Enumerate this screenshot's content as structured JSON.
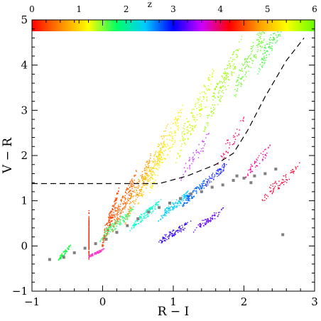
{
  "chart_data": {
    "type": "scatter",
    "xlabel": "R − I",
    "ylabel": "V − R",
    "xlim": [
      -1,
      3
    ],
    "ylim": [
      -1,
      5
    ],
    "x_ticks": [
      -1,
      0,
      1,
      2,
      3
    ],
    "y_ticks": [
      -1,
      0,
      1,
      2,
      3,
      4,
      5
    ],
    "colorbar": {
      "label": "z",
      "min": 0,
      "max": 6,
      "ticks": [
        0,
        1,
        2,
        3,
        4,
        5,
        6
      ],
      "colors": [
        "#ff0000",
        "#ff8800",
        "#ffff00",
        "#00ff66",
        "#00ccff",
        "#0000ff",
        "#cc00ff",
        "#ff0000",
        "#ff9900",
        "#ffff00",
        "#66ff00"
      ]
    },
    "series": [
      {
        "color": "#808080",
        "points": [
          [
            -0.75,
            -0.3
          ],
          [
            -0.55,
            -0.25
          ],
          [
            -0.4,
            -0.15
          ],
          [
            -0.25,
            -0.05
          ],
          [
            -0.1,
            0.05
          ],
          [
            0.05,
            0.15
          ],
          [
            0.2,
            0.3
          ],
          [
            0.35,
            0.45
          ],
          [
            0.5,
            0.6
          ],
          [
            0.65,
            0.75
          ],
          [
            0.8,
            0.85
          ],
          [
            0.95,
            0.95
          ],
          [
            1.1,
            1.05
          ],
          [
            1.25,
            1.15
          ],
          [
            1.4,
            1.2
          ],
          [
            1.55,
            1.3
          ],
          [
            1.7,
            1.35
          ],
          [
            1.85,
            1.45
          ],
          [
            2.0,
            1.5
          ],
          [
            2.15,
            1.55
          ],
          [
            2.3,
            1.6
          ],
          [
            2.45,
            1.7
          ],
          [
            1.9,
            1.55
          ],
          [
            2.1,
            1.4
          ],
          [
            2.55,
            0.25
          ]
        ]
      }
    ],
    "reference_line": {
      "style": "dashed",
      "points": [
        [
          -1,
          1.38
        ],
        [
          0.8,
          1.38
        ],
        [
          1.2,
          1.55
        ],
        [
          1.6,
          1.8
        ],
        [
          1.85,
          2.05
        ],
        [
          2.05,
          2.55
        ],
        [
          2.3,
          3.3
        ],
        [
          2.6,
          4.1
        ],
        [
          2.85,
          4.6
        ]
      ]
    }
  }
}
